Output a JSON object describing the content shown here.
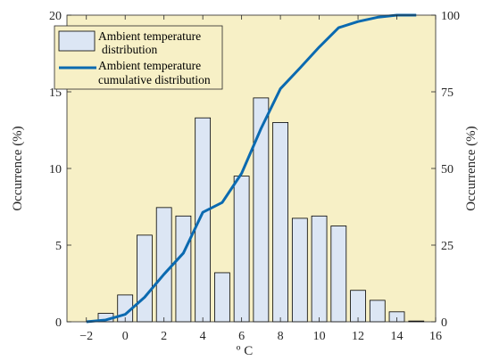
{
  "chart_data": {
    "type": "bar",
    "x": [
      -1,
      0,
      1,
      2,
      3,
      4,
      5,
      6,
      7,
      8,
      9,
      10,
      11,
      12,
      13,
      14,
      15
    ],
    "series": [
      {
        "name": "Ambient temperature distribution",
        "type": "bar",
        "axis": "left",
        "values": [
          0.55,
          1.75,
          5.65,
          7.45,
          6.9,
          13.3,
          3.2,
          9.5,
          14.6,
          13.0,
          6.75,
          6.9,
          6.25,
          2.05,
          1.4,
          0.65,
          0.05
        ]
      },
      {
        "name": "Ambient temperature cumulative distribution",
        "type": "line",
        "axis": "right",
        "x": [
          -2,
          -1,
          0,
          1,
          2,
          3,
          4,
          5,
          6,
          7,
          8,
          9,
          10,
          11,
          12,
          13,
          14,
          15
        ],
        "values": [
          0,
          0.6,
          2.4,
          8.0,
          15.5,
          22.4,
          35.7,
          38.9,
          48.4,
          63.0,
          76.0,
          82.7,
          89.6,
          95.9,
          97.9,
          99.3,
          100,
          100
        ]
      }
    ],
    "xlabel": "º C",
    "ylabel_left": "Occurrence (%)",
    "ylabel_right": "Occurrence (%)",
    "xlim": [
      -3,
      16
    ],
    "ylim_left": [
      0,
      20
    ],
    "ylim_right": [
      0,
      100
    ],
    "xticks": [
      "−2",
      "0",
      "2",
      "4",
      "6",
      "8",
      "10",
      "12",
      "14",
      "16"
    ],
    "yticks_left": [
      "0",
      "5",
      "10",
      "15",
      "20"
    ],
    "yticks_right": [
      "0",
      "25",
      "50",
      "75",
      "100"
    ],
    "grid": false,
    "legend_position": "top-left",
    "colors": {
      "plot_background": "#f7f0c6",
      "bar_fill": "#dce6f4",
      "bar_stroke": "#000000",
      "line": "#0b6ab0",
      "axis": "#262626"
    }
  }
}
